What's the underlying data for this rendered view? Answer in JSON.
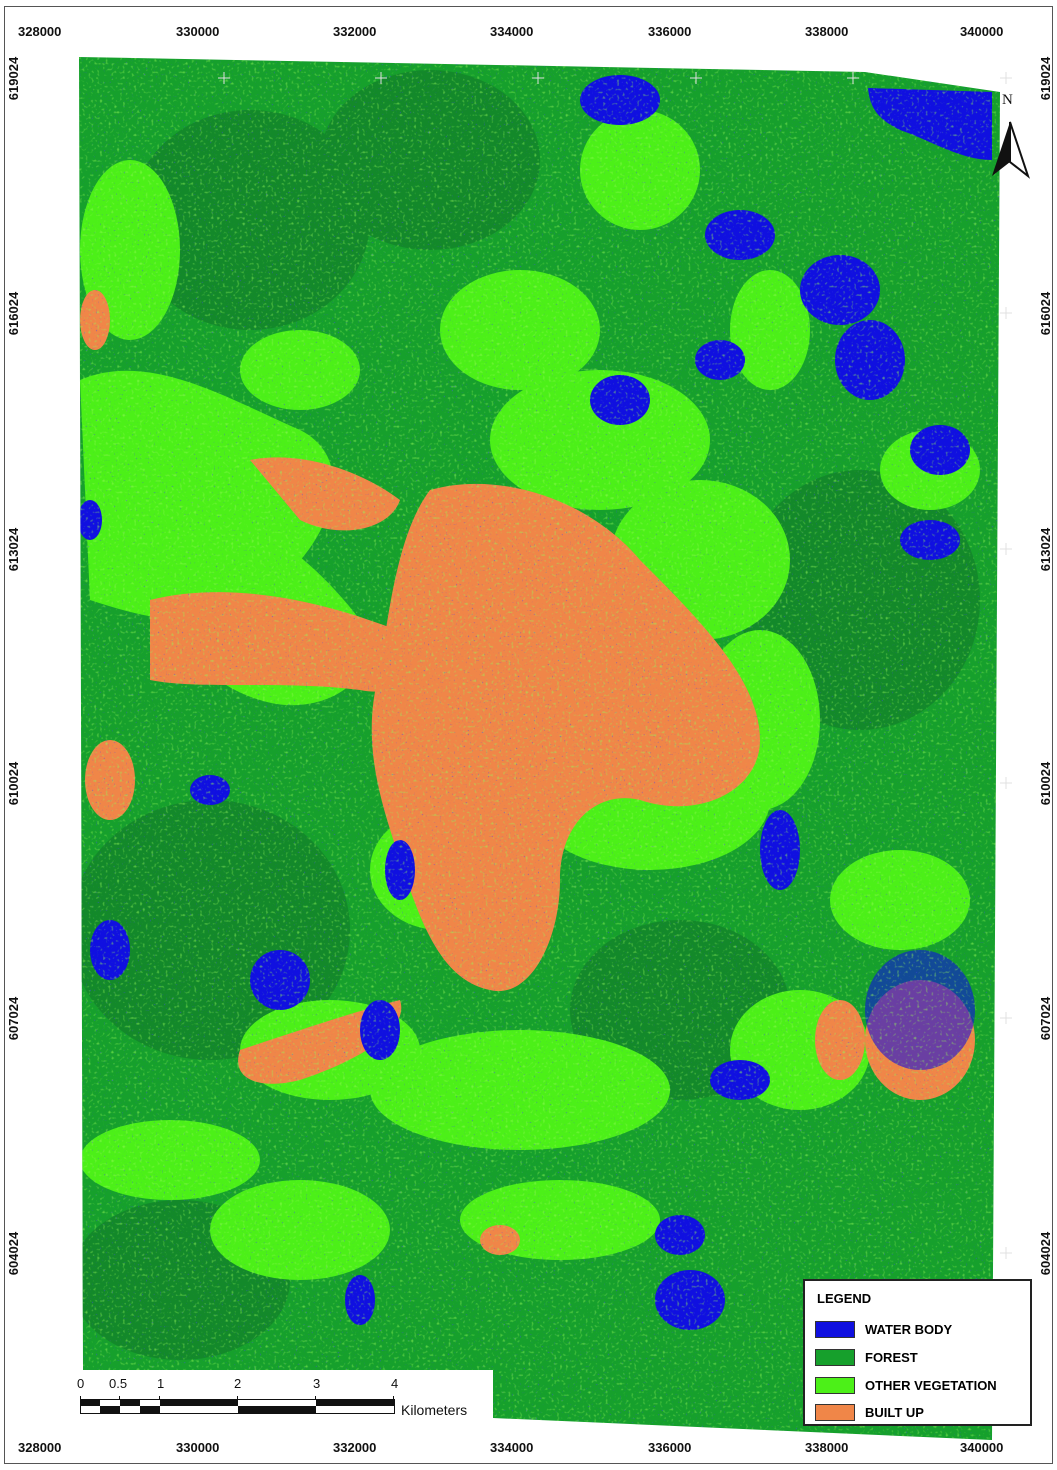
{
  "map": {
    "x_ticks": [
      "328000",
      "330000",
      "332000",
      "334000",
      "336000",
      "338000",
      "340000"
    ],
    "y_ticks": [
      "619024",
      "616024",
      "613024",
      "610024",
      "607024",
      "604024"
    ],
    "north_label": "N",
    "colors": {
      "water_body": "#1010e0",
      "forest": "#16a02c",
      "other_vegetation": "#4cf018",
      "built_up": "#f08648",
      "frame": "#555555"
    }
  },
  "legend": {
    "title": "LEGEND",
    "items": [
      {
        "label": "WATER BODY",
        "color": "#1010e0"
      },
      {
        "label": "FOREST",
        "color": "#16a02c"
      },
      {
        "label": "OTHER VEGETATION",
        "color": "#4cf018"
      },
      {
        "label": "BUILT UP",
        "color": "#f08648"
      }
    ]
  },
  "scale_bar": {
    "labels": [
      "0",
      "0.5",
      "1",
      "2",
      "3",
      "4"
    ],
    "unit": "Kilometers"
  }
}
